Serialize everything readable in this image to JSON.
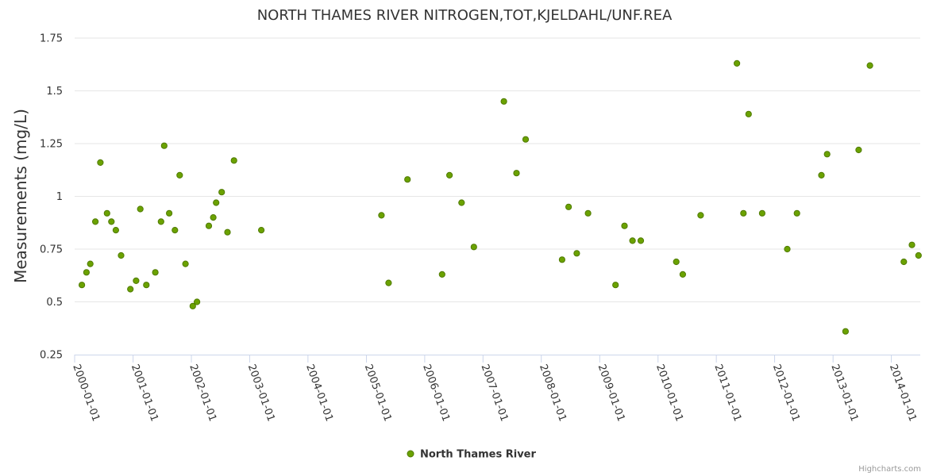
{
  "chart_data": {
    "type": "scatter",
    "title": "NORTH THAMES RIVER NITROGEN,TOT,KJELDAHL/UNF.REA",
    "ylabel": "Measurements (mg/L)",
    "xlabel": "",
    "ylim": [
      0.25,
      1.75
    ],
    "xlim": [
      "2000-01-01",
      "2014-07-01"
    ],
    "yticks": [
      "0.25",
      "0.5",
      "0.75",
      "1",
      "1.25",
      "1.5",
      "1.75"
    ],
    "xticks": [
      "2000-01-01",
      "2001-01-01",
      "2002-01-01",
      "2003-01-01",
      "2004-01-01",
      "2005-01-01",
      "2006-01-01",
      "2007-01-01",
      "2008-01-01",
      "2009-01-01",
      "2010-01-01",
      "2011-01-01",
      "2012-01-01",
      "2013-01-01",
      "2014-01-01"
    ],
    "grid": true,
    "legend_position": "bottom-center",
    "colors": {
      "marker_fill": "#6ba200",
      "marker_stroke": "#4f7a00",
      "grid": "#e6e6e6",
      "axis": "#ccd6eb"
    },
    "series": [
      {
        "name": "North Thames River",
        "x": [
          "2000-02-15",
          "2000-03-15",
          "2000-04-08",
          "2000-05-10",
          "2000-06-10",
          "2000-07-22",
          "2000-08-18",
          "2000-09-15",
          "2000-10-18",
          "2000-12-15",
          "2001-01-20",
          "2001-02-15",
          "2001-03-25",
          "2001-05-20",
          "2001-06-25",
          "2001-07-15",
          "2001-08-15",
          "2001-09-20",
          "2001-10-20",
          "2001-11-25",
          "2002-01-10",
          "2002-02-05",
          "2002-04-20",
          "2002-05-18",
          "2002-06-05",
          "2002-07-10",
          "2002-08-15",
          "2002-09-25",
          "2003-03-15",
          "2005-04-05",
          "2005-05-20",
          "2005-09-15",
          "2006-04-20",
          "2006-06-05",
          "2006-08-20",
          "2006-11-05",
          "2007-05-12",
          "2007-07-30",
          "2007-09-25",
          "2008-05-10",
          "2008-06-20",
          "2008-08-10",
          "2008-10-20",
          "2009-04-10",
          "2009-06-05",
          "2009-07-25",
          "2009-09-15",
          "2010-04-25",
          "2010-06-05",
          "2010-09-25",
          "2011-05-10",
          "2011-06-20",
          "2011-07-22",
          "2011-10-15",
          "2012-03-20",
          "2012-05-20",
          "2012-10-20",
          "2012-11-25",
          "2013-03-20",
          "2013-06-10",
          "2013-08-20",
          "2014-03-20",
          "2014-05-10",
          "2014-06-20"
        ],
        "y": [
          0.58,
          0.64,
          0.68,
          0.88,
          1.16,
          0.92,
          0.88,
          0.84,
          0.72,
          0.56,
          0.6,
          0.94,
          0.58,
          0.64,
          0.88,
          1.24,
          0.92,
          0.84,
          1.1,
          0.68,
          0.48,
          0.5,
          0.86,
          0.9,
          0.97,
          1.02,
          0.83,
          1.17,
          0.84,
          0.91,
          0.59,
          1.08,
          0.63,
          1.1,
          0.97,
          0.76,
          1.45,
          1.11,
          1.27,
          0.7,
          0.95,
          0.73,
          0.92,
          0.58,
          0.86,
          0.79,
          0.79,
          0.69,
          0.63,
          0.91,
          1.63,
          0.92,
          1.39,
          0.92,
          0.75,
          0.92,
          1.1,
          1.2,
          0.36,
          1.22,
          1.62,
          0.69,
          0.77,
          0.72
        ]
      }
    ]
  },
  "credit": "Highcharts.com"
}
